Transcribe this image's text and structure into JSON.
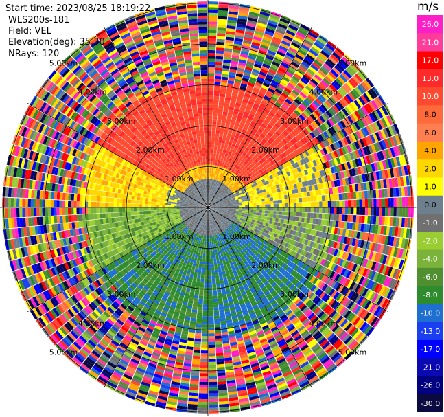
{
  "header": {
    "start_time": "Start time: 2023/08/25 18:19:22",
    "instrument": "WLS200s-181",
    "field": "Field: VEL",
    "elevation": "Elevation(deg): 35.30",
    "nrays": "NRays: 120"
  },
  "colorbar": {
    "unit": "m/s",
    "ticks": [
      "26.0",
      "21.0",
      "17.0",
      "13.0",
      "10.0",
      "8.0",
      "6.0",
      "4.0",
      "2.0",
      "1.0",
      "0.0",
      "-1.0",
      "-2.0",
      "-4.0",
      "-6.0",
      "-8.0",
      "-10.0",
      "-13.0",
      "-17.0",
      "-21.0",
      "-26.0",
      "-30.0"
    ],
    "colors": [
      "#ff1fc8",
      "#ff3c9a",
      "#ff0000",
      "#ff2a2a",
      "#ff4a30",
      "#ff6a3a",
      "#ff7f50",
      "#ffa500",
      "#ffd700",
      "#ffff00",
      "#6e7f8e",
      "#707070",
      "#9acd32",
      "#7bb33a",
      "#4f8f2f",
      "#2e8b2e",
      "#1e6fd0",
      "#1a3ff0",
      "#0000ff",
      "#0a0ab0",
      "#000080",
      "#0a0a40"
    ],
    "tick_colors": [
      "#ffffff",
      "#ffffff",
      "#ffffff",
      "#ffffff",
      "#ffffff",
      "#000000",
      "#000000",
      "#000000",
      "#000000",
      "#000000",
      "#000000",
      "#ffffff",
      "#ffffff",
      "#ffffff",
      "#ffffff",
      "#ffffff",
      "#ffffff",
      "#ffffff",
      "#ffffff",
      "#ffffff",
      "#ffffff",
      "#ffffff"
    ]
  },
  "chart_data": {
    "type": "heatmap",
    "projection": "polar (PPI scan)",
    "field": "VEL",
    "nrays": 120,
    "elevation_deg": 35.3,
    "range_ring_labels_km": [
      "1.00km",
      "2.00km",
      "3.00km",
      "4.00km",
      "5.00km"
    ],
    "range_rings_km": [
      1,
      2,
      3,
      4,
      5
    ],
    "unit": "m/s",
    "value_range": [
      -30,
      26
    ],
    "spoke_spacing_deg": 30,
    "sectors": [
      {
        "azimuth_from": 300,
        "azimuth_to": 60,
        "typical_velocity": 12,
        "colors_shown": [
          "red",
          "orange"
        ]
      },
      {
        "azimuth_from": 60,
        "azimuth_to": 90,
        "typical_velocity": 2,
        "colors_shown": [
          "yellow",
          "gray"
        ]
      },
      {
        "azimuth_from": 90,
        "azimuth_to": 120,
        "typical_velocity": -1,
        "colors_shown": [
          "gray",
          "olive"
        ]
      },
      {
        "azimuth_from": 120,
        "azimuth_to": 180,
        "typical_velocity": -8,
        "colors_shown": [
          "green",
          "blue"
        ]
      },
      {
        "azimuth_from": 180,
        "azimuth_to": 240,
        "typical_velocity": -7,
        "colors_shown": [
          "blue",
          "green"
        ]
      },
      {
        "azimuth_from": 240,
        "azimuth_to": 270,
        "typical_velocity": -3,
        "colors_shown": [
          "olive",
          "green"
        ]
      },
      {
        "azimuth_from": 270,
        "azimuth_to": 300,
        "typical_velocity": 3,
        "colors_shown": [
          "yellow",
          "orange"
        ]
      }
    ],
    "clean_data_radius_km": 2.9,
    "noise_region": "beyond about 3 km range the field is random noise across all colors"
  }
}
